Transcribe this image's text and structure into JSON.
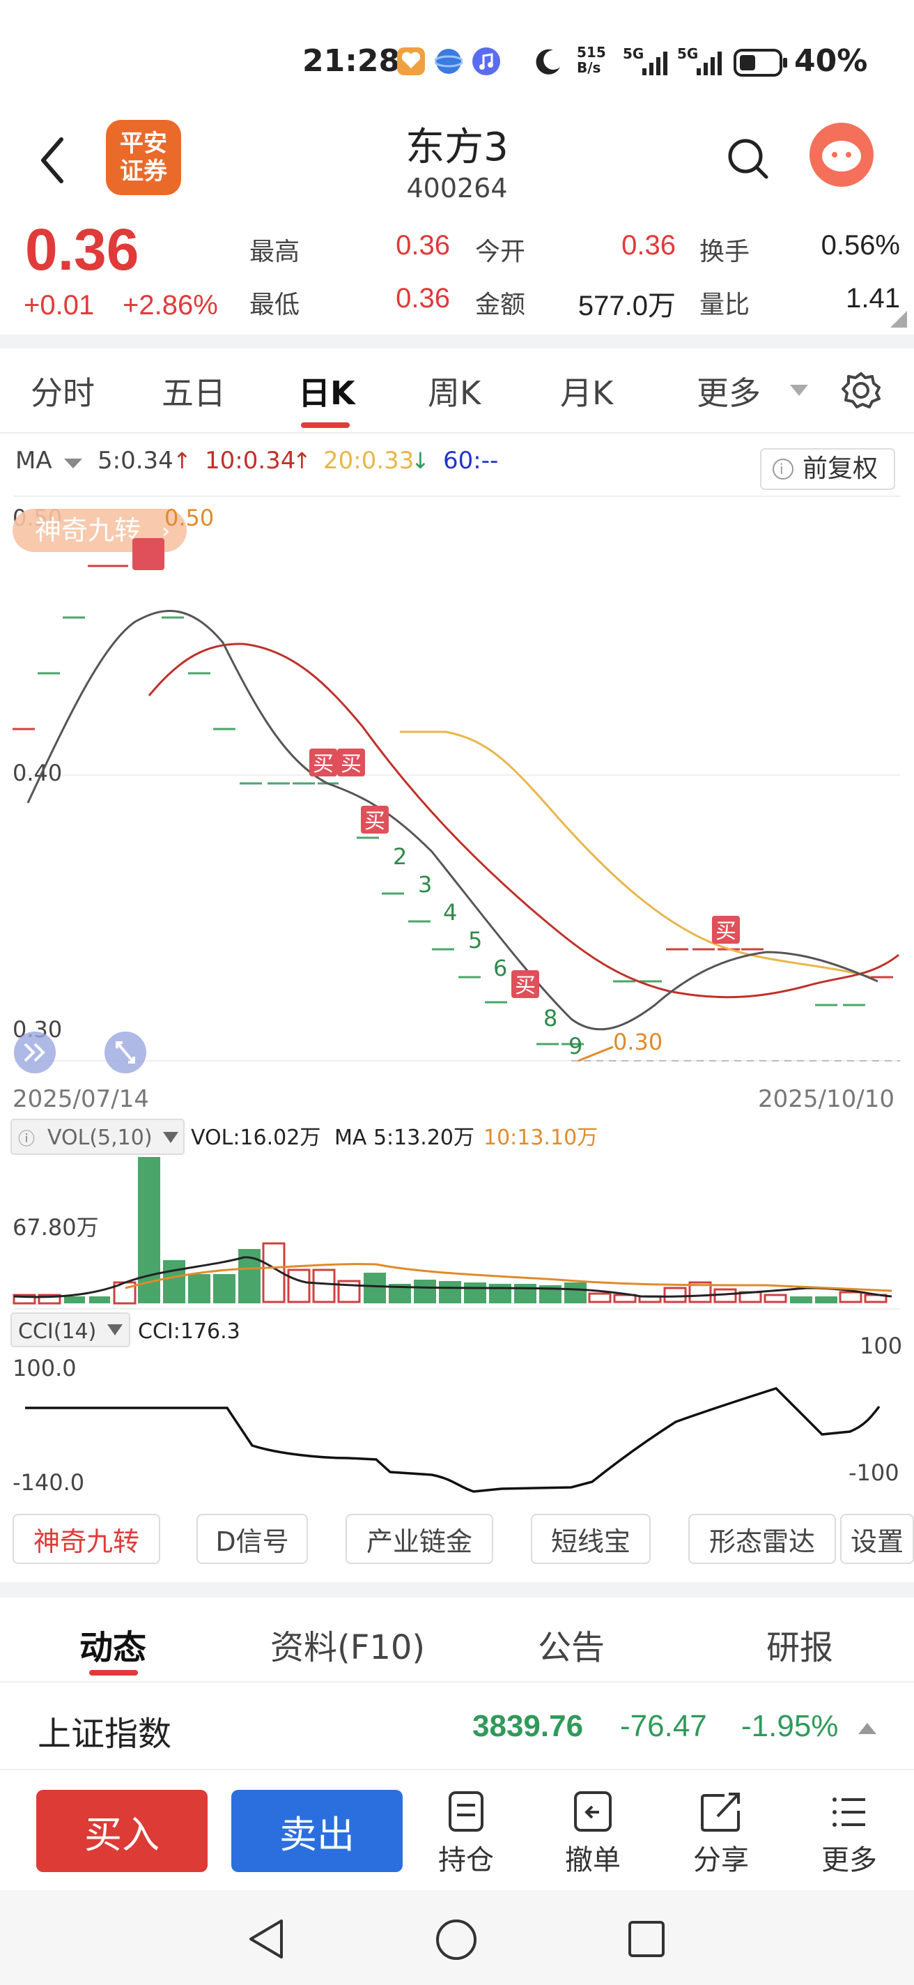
{
  "status_bar": {
    "time": "21:28",
    "net_speed_top": "515",
    "net_speed_bottom": "B/s",
    "signal1": "5G",
    "signal2": "5G",
    "battery": "40%"
  },
  "header": {
    "logo_line1": "平安",
    "logo_line2": "证券",
    "title": "东方3",
    "code": "400264"
  },
  "quote": {
    "price": "0.36",
    "change": "+0.01",
    "change_pct": "+2.86%",
    "fields": [
      {
        "label": "最高",
        "value": "0.36",
        "color": "red"
      },
      {
        "label": "今开",
        "value": "0.36",
        "color": "red"
      },
      {
        "label": "换手",
        "value": "0.56%",
        "color": "dark"
      },
      {
        "label": "最低",
        "value": "0.36",
        "color": "red"
      },
      {
        "label": "金额",
        "value": "577.0万",
        "color": "dark"
      },
      {
        "label": "量比",
        "value": "1.41",
        "color": "dark"
      }
    ]
  },
  "tabs": [
    "分时",
    "五日",
    "日K",
    "周K",
    "月K",
    "更多"
  ],
  "active_tab": "日K",
  "chart": {
    "ma_label": "MA",
    "ma5": "5:0.34",
    "ma10": "10:0.34",
    "ma20": "20:0.33",
    "ma60": "60:--",
    "adjust": "前复权",
    "badge": "神奇九转",
    "price_labels": {
      "top": "0.50",
      "mid": "0.40",
      "low": "0.30"
    },
    "high_mark": "0.50",
    "low_mark": "0.30",
    "date_start": "2025/07/14",
    "date_end": "2025/10/10",
    "buy_mark": "买",
    "nine_turn_counts": [
      "2",
      "3",
      "4",
      "5",
      "6",
      "8",
      "9"
    ],
    "vol_label": "VOL(5,10)",
    "vol_value": "VOL:16.02万",
    "vol_ma5": "MA 5:13.20万",
    "vol_ma10": "10:13.10万",
    "vol_axis": "67.80万",
    "cci_label": "CCI(14)",
    "cci_value": "CCI:176.3",
    "cci_top": "100.0",
    "cci_bottom": "-140.0",
    "cci_right_top": "100",
    "cci_right_bottom": "-100",
    "colors": {
      "ma5": "#555555",
      "ma10": "#c0302a",
      "ma20": "#e8b64a",
      "ma60": "#2233cc"
    }
  },
  "tool_chips": [
    "神奇九转",
    "D信号",
    "产业链金",
    "短线宝",
    "形态雷达",
    "设置"
  ],
  "bottom_tabs": [
    "动态",
    "资料(F10)",
    "公告",
    "研报"
  ],
  "index": {
    "name": "上证指数",
    "value": "3839.76",
    "change": "-76.47",
    "pct": "-1.95%"
  },
  "actions": {
    "buy": "买入",
    "sell": "卖出",
    "items": [
      "持仓",
      "撤单",
      "分享",
      "更多"
    ]
  }
}
